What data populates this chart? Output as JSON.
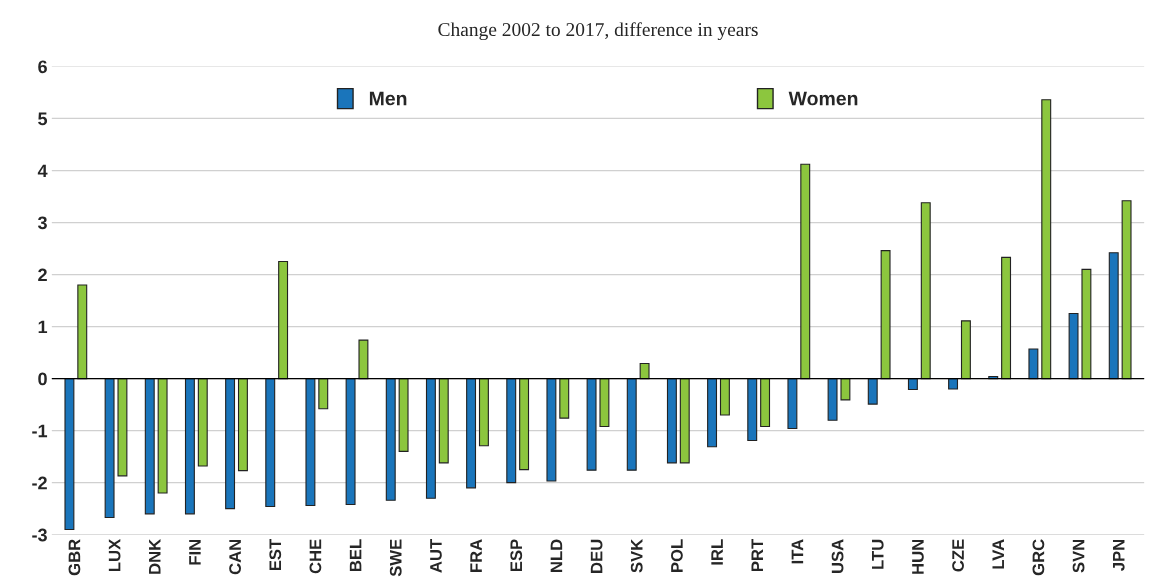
{
  "chart_data": {
    "type": "bar",
    "title": "Change 2002 to 2017, difference in years",
    "categories": [
      "GBR",
      "LUX",
      "DNK",
      "FIN",
      "CAN",
      "EST",
      "CHE",
      "BEL",
      "SWE",
      "AUT",
      "FRA",
      "ESP",
      "NLD",
      "DEU",
      "SVK",
      "POL",
      "IRL",
      "PRT",
      "ITA",
      "USA",
      "LTU",
      "HUN",
      "CZE",
      "LVA",
      "GRC",
      "SVN",
      "JPN"
    ],
    "series": [
      {
        "name": "Men",
        "color": "#1a75bb",
        "values": [
          -2.9,
          -2.67,
          -2.6,
          -2.6,
          -2.5,
          -2.46,
          -2.44,
          -2.42,
          -2.34,
          -2.3,
          -2.1,
          -2.0,
          -1.97,
          -1.76,
          -1.76,
          -1.62,
          -1.31,
          -1.19,
          -0.96,
          -0.8,
          -0.49,
          -0.21,
          -0.2,
          0.04,
          0.57,
          1.25,
          2.42
        ]
      },
      {
        "name": "Women",
        "color": "#8cc63e",
        "values": [
          1.8,
          -1.87,
          -2.2,
          -1.68,
          -1.77,
          2.25,
          -0.58,
          0.74,
          -1.4,
          -1.62,
          -1.29,
          -1.75,
          -0.76,
          -0.92,
          0.29,
          -1.62,
          -0.7,
          -0.92,
          4.12,
          -0.41,
          2.46,
          3.38,
          1.11,
          2.33,
          5.36,
          2.1,
          3.42
        ]
      }
    ],
    "ylim": [
      -3,
      6
    ],
    "yticks": [
      -3,
      -2,
      -1,
      0,
      1,
      2,
      3,
      4,
      5,
      6
    ],
    "grid": "y",
    "legend": "top"
  }
}
